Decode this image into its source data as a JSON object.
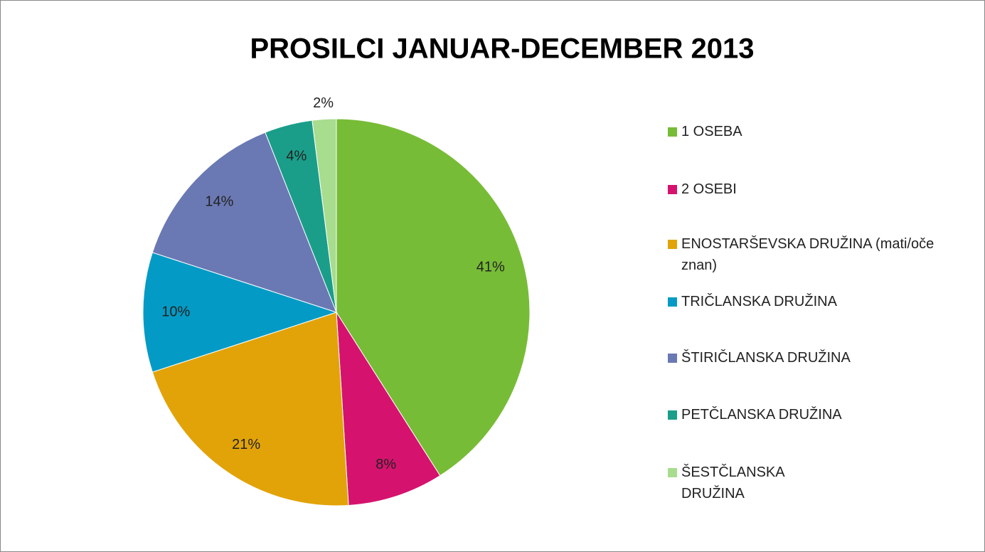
{
  "chart_data": {
    "type": "pie",
    "title": "PROSILCI JANUAR-DECEMBER 2013",
    "categories": [
      "1 OSEBA",
      "2 OSEBI",
      "ENOSTARŠEVSKA DRUŽINA (mati/oče znan)",
      "TRIČLANSKA DRUŽINA",
      "ŠTIRIČLANSKA DRUŽINA",
      "PETČLANSKA DRUŽINA",
      "ŠESTČLANSKA DRUŽINA"
    ],
    "values": [
      41,
      8,
      21,
      10,
      14,
      4,
      2
    ],
    "value_labels": [
      "41%",
      "8%",
      "21%",
      "10%",
      "14%",
      "4%",
      "2%"
    ],
    "colors": [
      "#77bc36",
      "#d5136e",
      "#e2a309",
      "#039bc5",
      "#6a79b3",
      "#1a9e8a",
      "#a8dc8e"
    ],
    "legend": "right"
  }
}
